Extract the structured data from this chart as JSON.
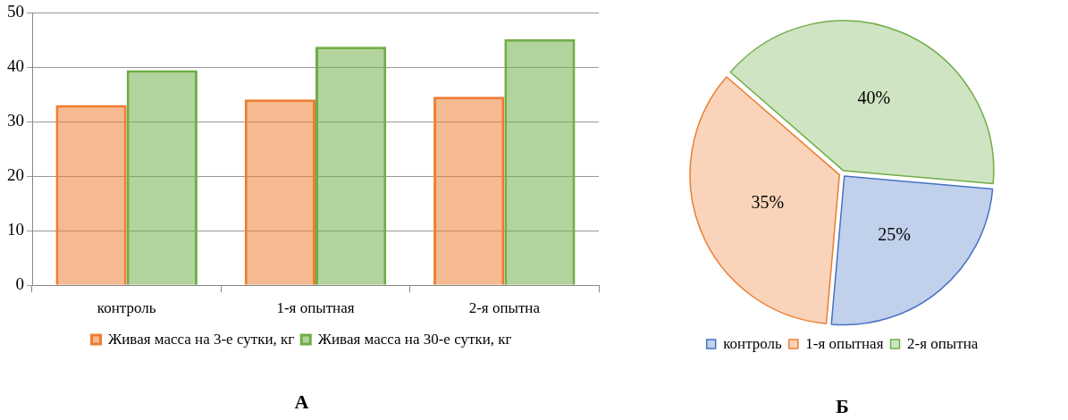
{
  "chart_data": [
    {
      "type": "bar",
      "title": "А",
      "categories": [
        "контроль",
        "1-я опытная",
        "2-я опытна"
      ],
      "series": [
        {
          "name": "Живая масса на 3-е сутки, кг",
          "color": "#ed7d31",
          "values": [
            33.1,
            34.1,
            34.6
          ]
        },
        {
          "name": "Живая масса на 30-е сутки, кг",
          "color": "#70ad47",
          "values": [
            39.5,
            43.8,
            45.2
          ]
        }
      ],
      "ylim": [
        0,
        50
      ],
      "yticks": [
        0,
        10,
        20,
        30,
        40,
        50
      ],
      "grid": "y",
      "legend": "bottom"
    },
    {
      "type": "pie",
      "title": "Б",
      "categories": [
        "контроль",
        "1-я опытная",
        "2-я опытна"
      ],
      "values": [
        25,
        35,
        40
      ],
      "colors": [
        "#4472c4",
        "#ed7d31",
        "#70ad47"
      ],
      "value_labels": [
        "25%",
        "35%",
        "40%"
      ],
      "legend": "bottom"
    }
  ]
}
